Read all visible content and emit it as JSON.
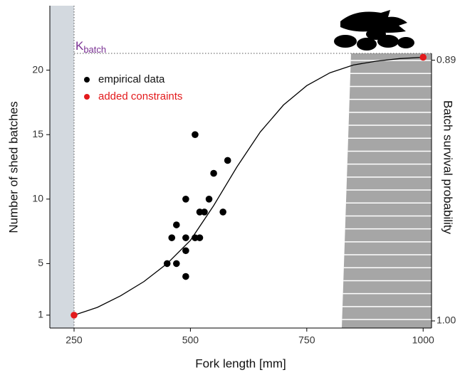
{
  "chart_data": {
    "type": "scatter",
    "xlabel": "Fork length [mm]",
    "ylabel": "Number of shed batches",
    "y2label": "Batch survival probability",
    "kbatch_label": {
      "main": "K",
      "sub": "batch"
    },
    "kbatch": 21.3,
    "kbatch_color": "#7b3294",
    "xlim": [
      198,
      1018
    ],
    "ylim": [
      0,
      25
    ],
    "y2lim": [
      1.003,
      0.867
    ],
    "xticks": [
      250,
      500,
      750,
      1000
    ],
    "yticks": [
      1,
      5,
      10,
      15,
      20
    ],
    "y2ticks": [
      0.89,
      {
        "value": 1,
        "label": "1.00"
      }
    ],
    "series": [
      {
        "name": "empirical data",
        "color": "#000000",
        "x": [
          450,
          470,
          460,
          470,
          490,
          490,
          490,
          490,
          510,
          510,
          520,
          520,
          530,
          540,
          550,
          570,
          580
        ],
        "values": [
          5,
          5,
          7,
          8,
          4,
          6,
          7,
          10,
          15,
          7,
          7,
          9,
          9,
          10,
          12,
          9,
          13
        ]
      },
      {
        "name": "added constraints",
        "color": "#e31a1c",
        "x": [
          250,
          1000
        ],
        "values": [
          1,
          21
        ]
      }
    ],
    "curve": {
      "color": "#000000",
      "x": [
        250,
        300,
        350,
        400,
        450,
        500,
        550,
        600,
        650,
        700,
        750,
        800,
        850,
        900,
        950,
        1000
      ],
      "values": [
        1.0,
        1.6,
        2.5,
        3.6,
        5.0,
        6.8,
        9.5,
        12.5,
        15.2,
        17.3,
        18.8,
        19.8,
        20.4,
        20.7,
        20.9,
        21.0
      ]
    }
  }
}
